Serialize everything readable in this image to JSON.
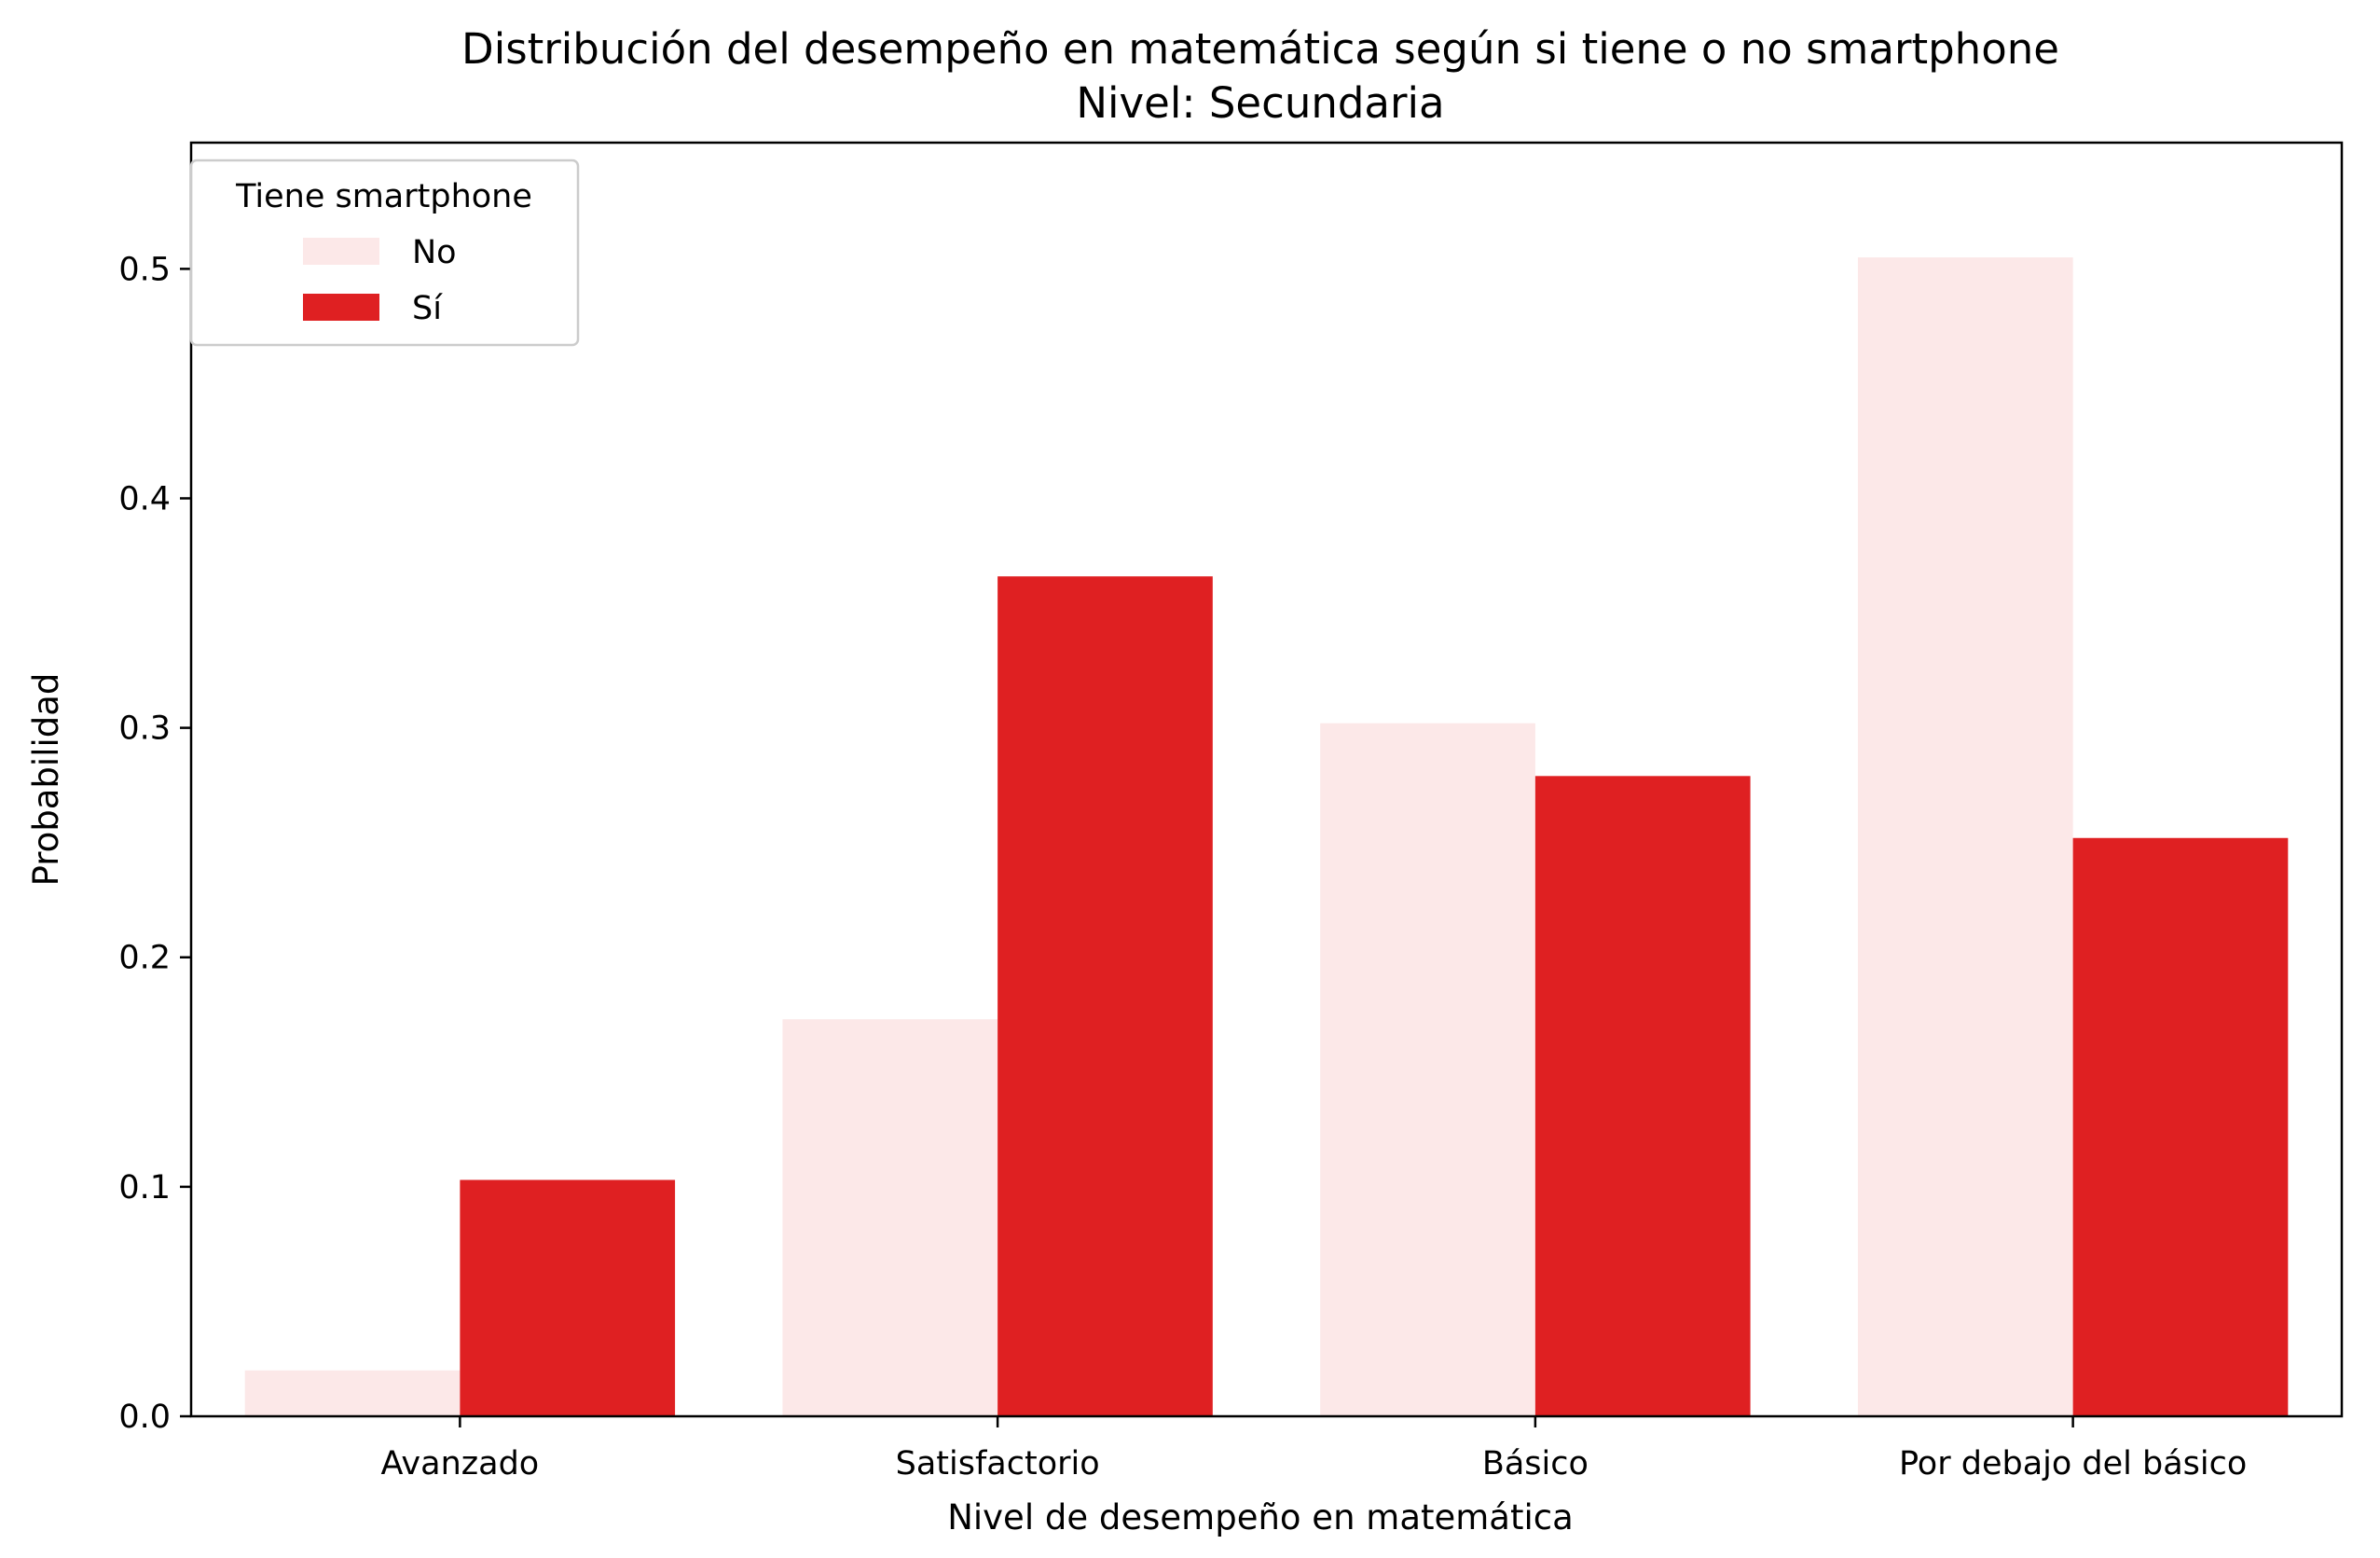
{
  "chart_data": {
    "type": "bar",
    "title": "Distribución del desempeño en matemática según si tiene o no smartphone",
    "subtitle": "Nivel: Secundaria",
    "xlabel": "Nivel de desempeño en matemática",
    "ylabel": "Probabilidad",
    "categories": [
      "Avanzado",
      "Satisfactorio",
      "Básico",
      "Por debajo del básico"
    ],
    "series": [
      {
        "name": "No",
        "color": "#fce8e8",
        "values": [
          0.02,
          0.173,
          0.302,
          0.505
        ]
      },
      {
        "name": "Sí",
        "color": "#df2022",
        "values": [
          0.103,
          0.366,
          0.279,
          0.252
        ]
      }
    ],
    "ylim": [
      0,
      0.555
    ],
    "yticks": [
      0.0,
      0.1,
      0.2,
      0.3,
      0.4,
      0.5
    ],
    "ytick_labels": [
      "0.0",
      "0.1",
      "0.2",
      "0.3",
      "0.4",
      "0.5"
    ],
    "grid": false,
    "legend": {
      "title": "Tiene smartphone",
      "placement": "top-left"
    }
  }
}
